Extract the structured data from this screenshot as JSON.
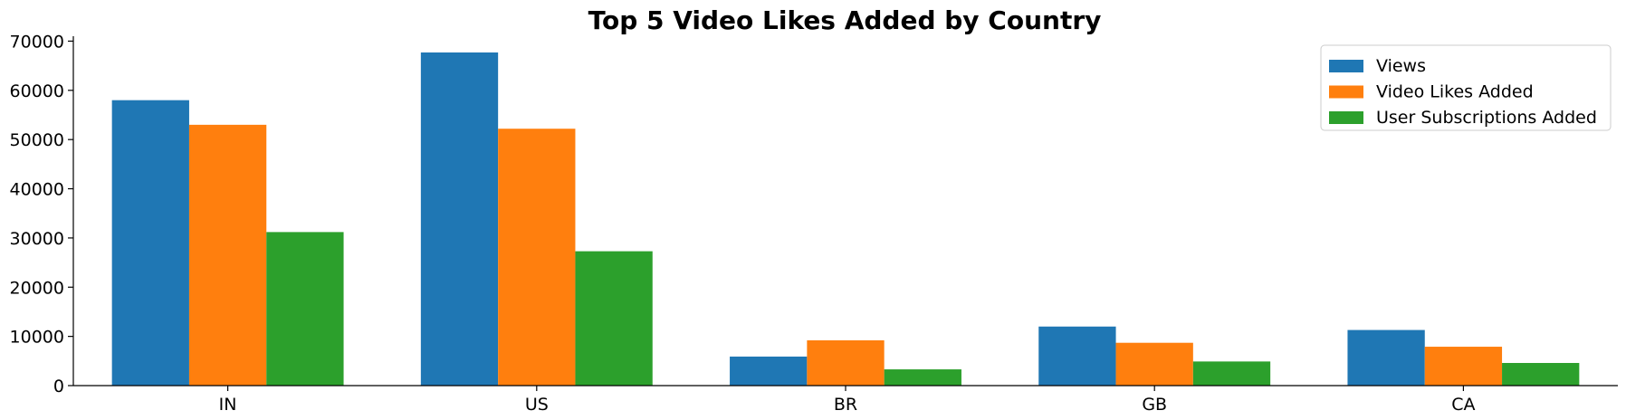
{
  "chart_data": {
    "type": "bar",
    "title": "Top 5 Video Likes Added by Country",
    "xlabel": "",
    "ylabel": "",
    "categories": [
      "IN",
      "US",
      "BR",
      "GB",
      "CA"
    ],
    "series": [
      {
        "name": "Views",
        "color": "#1f77b4",
        "values": [
          58000,
          67700,
          5900,
          12000,
          11300
        ]
      },
      {
        "name": "Video Likes Added",
        "color": "#ff7f0e",
        "values": [
          53000,
          52200,
          9200,
          8700,
          7900
        ]
      },
      {
        "name": "User Subscriptions Added",
        "color": "#2ca02c",
        "values": [
          31200,
          27300,
          3300,
          4900,
          4600
        ]
      }
    ],
    "ylim": [
      0,
      71000
    ],
    "yticks": [
      0,
      10000,
      20000,
      30000,
      40000,
      50000,
      60000,
      70000
    ],
    "ytick_labels": [
      "0",
      "10000",
      "20000",
      "30000",
      "40000",
      "50000",
      "60000",
      "70000"
    ],
    "legend_position": "top-right",
    "grid": false
  }
}
